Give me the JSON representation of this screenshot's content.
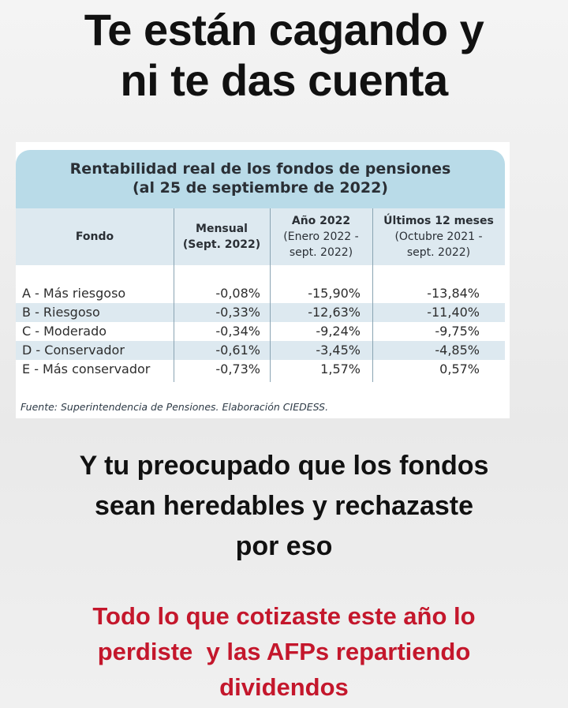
{
  "headline": {
    "line1": "Te están cagando y",
    "line2": "ni te das cuenta"
  },
  "table": {
    "title_line1": "Rentabilidad real de los fondos de pensiones",
    "title_line2": "(al 25 de septiembre de 2022)",
    "headers": {
      "fondo": "Fondo",
      "mensual": [
        "Mensual",
        "(Sept. 2022)"
      ],
      "anio": [
        "Año 2022",
        "(Enero 2022 -",
        "sept. 2022)"
      ],
      "ultimos": [
        "Últimos 12 meses",
        "(Octubre 2021 -",
        "sept. 2022)"
      ]
    },
    "rows": [
      {
        "fondo": "A - Más riesgoso",
        "mensual": "-0,08%",
        "anio": "-15,90%",
        "ultimos": "-13,84%"
      },
      {
        "fondo": "B - Riesgoso",
        "mensual": "-0,33%",
        "anio": "-12,63%",
        "ultimos": "-11,40%"
      },
      {
        "fondo": "C - Moderado",
        "mensual": "-0,34%",
        "anio": "-9,24%",
        "ultimos": "-9,75%"
      },
      {
        "fondo": "D - Conservador",
        "mensual": "-0,61%",
        "anio": "-3,45%",
        "ultimos": "-4,85%"
      },
      {
        "fondo": "E - Más conservador",
        "mensual": "-0,73%",
        "anio": "1,57%",
        "ultimos": "0,57%"
      }
    ],
    "source": "Fuente: Superintendencia de Pensiones. Elaboración CIEDESS."
  },
  "middle": {
    "line1": "Y tu preocupado que los fondos",
    "line2": "sean heredables y rechazaste",
    "line3": "por eso"
  },
  "bottom": {
    "line1": "Todo lo que cotizaste este año lo",
    "line2": "perdiste  y las AFPs repartiendo",
    "line3": "dividendos"
  },
  "colors": {
    "title_band": "#b9dbe8",
    "row_alt": "#dde9f0",
    "bottom_text": "#c4172c"
  }
}
